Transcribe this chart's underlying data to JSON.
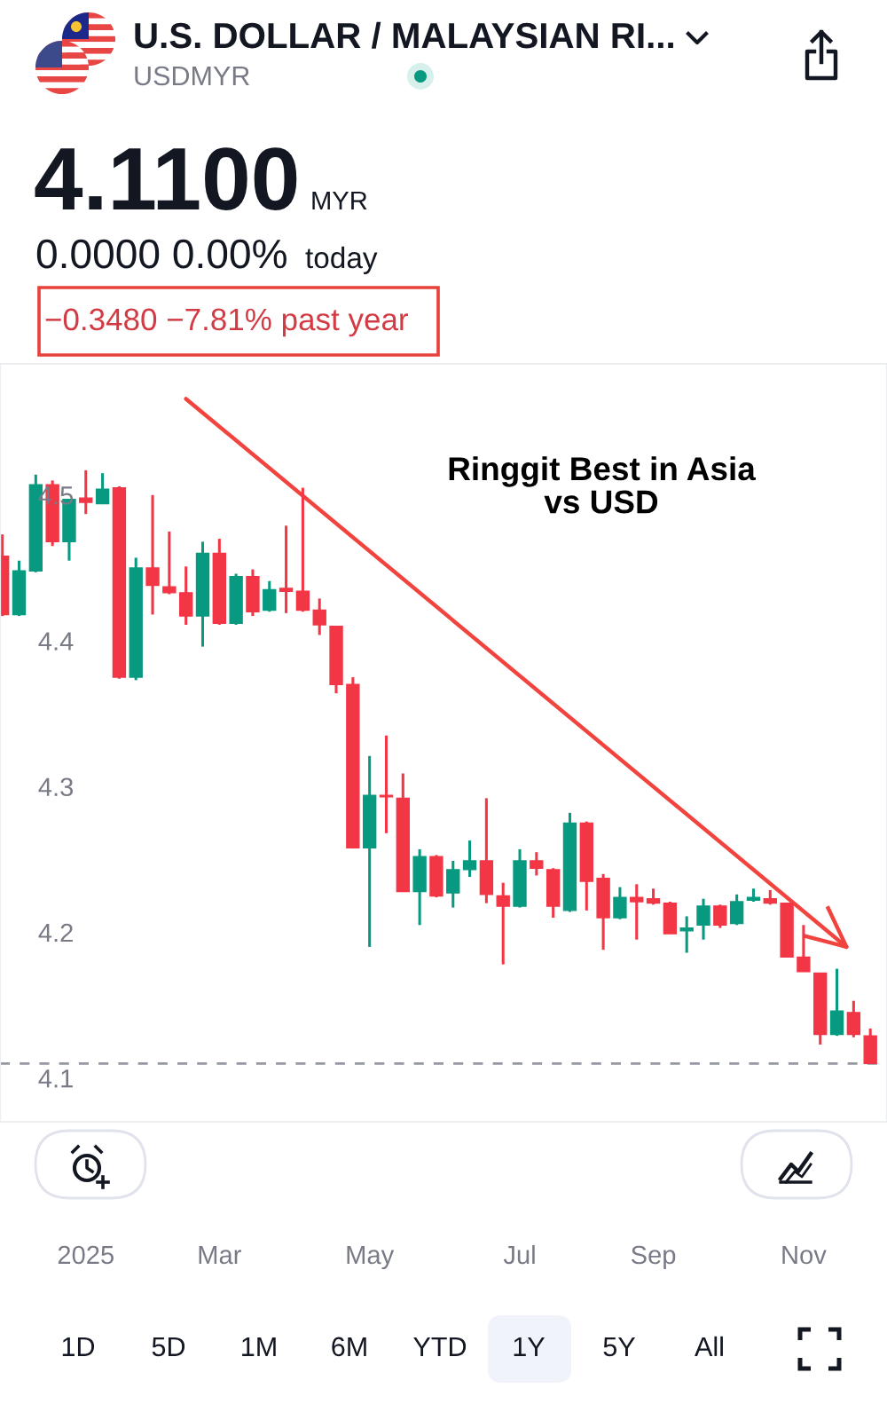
{
  "chart_data": {
    "type": "candlestick",
    "title": "U.S. DOLLAR / MALAYSIAN RI...",
    "subtitle": "USDMYR",
    "x": [
      "2024-12-02",
      "2024-12-09",
      "2024-12-16",
      "2024-12-23",
      "2024-12-30",
      "2025-01-06",
      "2025-01-13",
      "2025-01-20",
      "2025-01-27",
      "2025-02-03",
      "2025-02-10",
      "2025-02-17",
      "2025-02-24",
      "2025-03-03",
      "2025-03-10",
      "2025-03-17",
      "2025-03-24",
      "2025-03-31",
      "2025-04-07",
      "2025-04-14",
      "2025-04-21",
      "2025-04-28",
      "2025-05-05",
      "2025-05-12",
      "2025-05-19",
      "2025-05-26",
      "2025-06-02",
      "2025-06-09",
      "2025-06-16",
      "2025-06-23",
      "2025-06-30",
      "2025-07-07",
      "2025-07-14",
      "2025-07-21",
      "2025-07-28",
      "2025-08-04",
      "2025-08-11",
      "2025-08-18",
      "2025-08-25",
      "2025-09-01",
      "2025-09-08",
      "2025-09-15",
      "2025-09-22",
      "2025-09-29",
      "2025-10-06",
      "2025-10-13",
      "2025-10-20",
      "2025-10-27",
      "2025-11-03",
      "2025-11-10",
      "2025-11-17",
      "2025-11-24",
      "2025-12-01"
    ],
    "ohlc": [
      [
        4.458,
        4.473,
        4.417,
        4.418
      ],
      [
        4.418,
        4.455,
        4.417,
        4.448
      ],
      [
        4.448,
        4.514,
        4.447,
        4.507
      ],
      [
        4.507,
        4.51,
        4.465,
        4.468
      ],
      [
        4.468,
        4.497,
        4.455,
        4.497
      ],
      [
        4.498,
        4.517,
        4.487,
        4.495
      ],
      [
        4.494,
        4.515,
        4.494,
        4.504
      ],
      [
        4.505,
        4.506,
        4.374,
        4.375
      ],
      [
        4.375,
        4.457,
        4.373,
        4.45
      ],
      [
        4.45,
        4.5,
        4.418,
        4.438
      ],
      [
        4.437,
        4.475,
        4.432,
        4.433
      ],
      [
        4.433,
        4.451,
        4.411,
        4.417
      ],
      [
        4.417,
        4.468,
        4.396,
        4.46
      ],
      [
        4.46,
        4.47,
        4.411,
        4.412
      ],
      [
        4.412,
        4.446,
        4.411,
        4.444
      ],
      [
        4.444,
        4.449,
        4.417,
        4.42
      ],
      [
        4.421,
        4.441,
        4.42,
        4.435
      ],
      [
        4.436,
        4.479,
        4.419,
        4.434
      ],
      [
        4.434,
        4.505,
        4.42,
        4.421
      ],
      [
        4.421,
        4.429,
        4.404,
        4.411
      ],
      [
        4.41,
        4.41,
        4.364,
        4.37
      ],
      [
        4.37,
        4.375,
        4.258,
        4.258
      ],
      [
        4.258,
        4.321,
        4.19,
        4.294
      ],
      [
        4.294,
        4.335,
        4.268,
        4.293
      ],
      [
        4.292,
        4.309,
        4.228,
        4.228
      ],
      [
        4.228,
        4.257,
        4.205,
        4.252
      ],
      [
        4.252,
        4.253,
        4.224,
        4.225
      ],
      [
        4.227,
        4.249,
        4.217,
        4.243
      ],
      [
        4.243,
        4.263,
        4.238,
        4.249
      ],
      [
        4.249,
        4.292,
        4.22,
        4.226
      ],
      [
        4.225,
        4.234,
        4.178,
        4.218
      ],
      [
        4.218,
        4.257,
        4.217,
        4.249
      ],
      [
        4.249,
        4.255,
        4.239,
        4.244
      ],
      [
        4.243,
        4.244,
        4.21,
        4.218
      ],
      [
        4.215,
        4.282,
        4.214,
        4.275
      ],
      [
        4.275,
        4.276,
        4.215,
        4.235
      ],
      [
        4.237,
        4.24,
        4.188,
        4.21
      ],
      [
        4.21,
        4.231,
        4.209,
        4.224
      ],
      [
        4.224,
        4.233,
        4.195,
        4.221
      ],
      [
        4.223,
        4.23,
        4.219,
        4.22
      ],
      [
        4.22,
        4.221,
        4.199,
        4.199
      ],
      [
        4.201,
        4.211,
        4.186,
        4.203
      ],
      [
        4.205,
        4.223,
        4.195,
        4.218
      ],
      [
        4.218,
        4.219,
        4.203,
        4.205
      ],
      [
        4.206,
        4.226,
        4.205,
        4.221
      ],
      [
        4.222,
        4.23,
        4.221,
        4.224
      ],
      [
        4.223,
        4.229,
        4.219,
        4.22
      ],
      [
        4.22,
        4.22,
        4.183,
        4.183
      ],
      [
        4.183,
        4.205,
        4.173,
        4.173
      ],
      [
        4.172,
        4.172,
        4.123,
        4.13
      ],
      [
        4.13,
        4.175,
        4.129,
        4.146
      ],
      [
        4.145,
        4.153,
        4.128,
        4.13
      ],
      [
        4.129,
        4.134,
        4.11,
        4.11
      ]
    ],
    "colors": [
      "#f23645",
      "#089981",
      "#089981",
      "#f23645",
      "#089981",
      "#f23645",
      "#089981",
      "#f23645",
      "#089981",
      "#f23645",
      "#f23645",
      "#f23645",
      "#089981",
      "#f23645",
      "#089981",
      "#f23645",
      "#089981",
      "#f23645",
      "#f23645",
      "#f23645",
      "#f23645",
      "#f23645",
      "#089981",
      "#f23645",
      "#f23645",
      "#089981",
      "#f23645",
      "#089981",
      "#089981",
      "#f23645",
      "#f23645",
      "#089981",
      "#f23645",
      "#f23645",
      "#089981",
      "#f23645",
      "#f23645",
      "#089981",
      "#f23645",
      "#f23645",
      "#f23645",
      "#089981",
      "#089981",
      "#f23645",
      "#089981",
      "#089981",
      "#f23645",
      "#f23645",
      "#f23645",
      "#f23645",
      "#089981",
      "#f23645",
      "#f23645"
    ],
    "series": [
      {
        "type": "line",
        "x": [
          "2025-02-17",
          "2025-11-21"
        ],
        "values": [
          4.566,
          4.19
        ],
        "color": "#f2443e"
      }
    ],
    "xlim": [
      "2024-12-01",
      "2025-12-08"
    ],
    "ylim": [
      4.07,
      4.59
    ],
    "xticks": [
      {
        "value": "2025-01-06",
        "label": "2025"
      },
      {
        "value": "2025-03-03",
        "label": "Mar"
      },
      {
        "value": "2025-05-05",
        "label": "May"
      },
      {
        "value": "2025-07-07",
        "label": "Jul"
      },
      {
        "value": "2025-09-01",
        "label": "Sep"
      },
      {
        "value": "2025-11-03",
        "label": "Nov"
      }
    ],
    "yticks": [
      4.1,
      4.2,
      4.3,
      4.4,
      4.5
    ],
    "ref_lines": [
      {
        "axis": "y",
        "value": 4.11,
        "color": "#9598a1",
        "line_style": "dashed"
      }
    ],
    "annotations": [
      "4.1100",
      "MYR",
      "0.0000 0.00%",
      "today",
      "−0.3480 −7.81% past year",
      "Ringgit Best in Asia\nvs USD",
      "1D",
      "5D",
      "1M",
      "6M",
      "YTD",
      "1Y",
      "5Y",
      "All"
    ]
  }
}
